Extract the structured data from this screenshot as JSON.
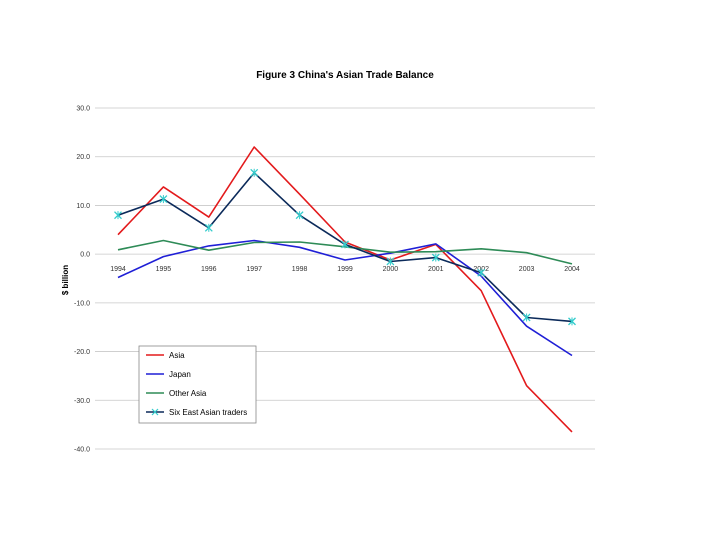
{
  "chart_data": {
    "type": "line",
    "title": "Figure 3 China's Asian Trade Balance",
    "xlabel": "",
    "ylabel": "$ billion",
    "x": [
      "1994",
      "1995",
      "1996",
      "1997",
      "1998",
      "1999",
      "2000",
      "2001",
      "2002",
      "2003",
      "2004"
    ],
    "ylim": [
      -40,
      30
    ],
    "yticks": [
      "30.0",
      "20.0",
      "10.0",
      "0.0",
      "-10.0",
      "-20.0",
      "-30.0",
      "-40.0"
    ],
    "grid": true,
    "legend_position": "bottom-left",
    "series": [
      {
        "name": "Asia",
        "color": "#e31a1c",
        "values": [
          4.0,
          13.8,
          7.6,
          22.0,
          12.3,
          2.5,
          -1.2,
          2.0,
          -7.5,
          -27.0,
          -36.5
        ]
      },
      {
        "name": "Japan",
        "color": "#1f1fd6",
        "values": [
          -4.8,
          -0.5,
          1.7,
          2.8,
          1.4,
          -1.2,
          0.2,
          2.1,
          -4.5,
          -14.8,
          -20.8
        ]
      },
      {
        "name": "Other Asia",
        "color": "#2e8b57",
        "values": [
          0.9,
          2.8,
          0.8,
          2.4,
          2.5,
          1.5,
          0.4,
          0.5,
          1.1,
          0.3,
          -2.0
        ]
      },
      {
        "name": "Six East Asian traders",
        "color": "#0b2a5a",
        "marker": "x",
        "marker_color": "#33cccc",
        "values": [
          8.0,
          11.3,
          5.4,
          16.7,
          8.0,
          2.0,
          -1.5,
          -0.7,
          -3.8,
          -13.0,
          -13.8
        ]
      }
    ]
  }
}
